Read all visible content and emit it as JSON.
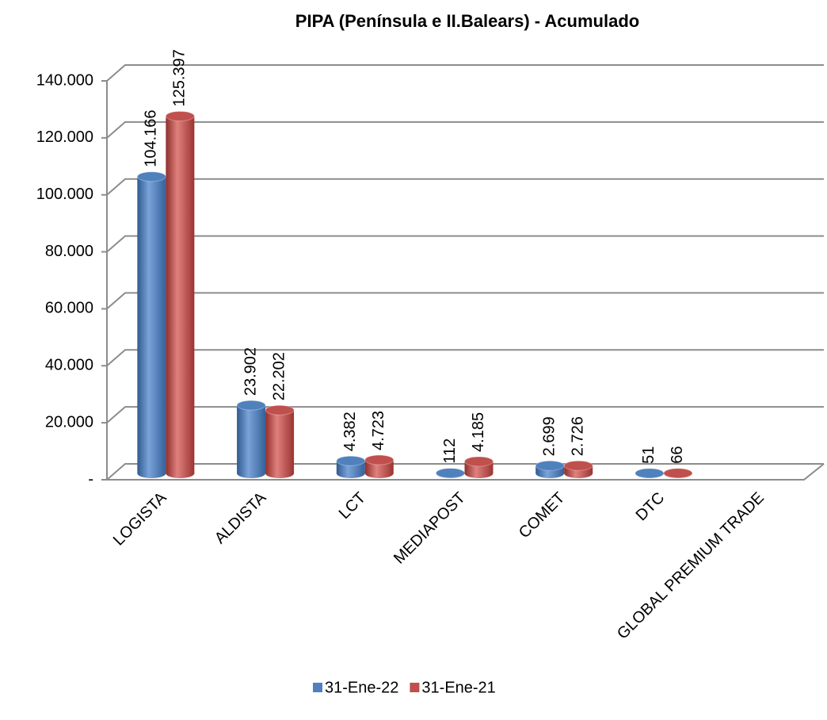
{
  "chart_data": {
    "type": "bar3d",
    "title": "PIPA  (Península e II.Balears) - Acumulado",
    "categories": [
      "LOGISTA",
      "ALDISTA",
      "LCT",
      "MEDIAPOST",
      "COMET",
      "DTC",
      "GLOBAL PREMIUM TRADE"
    ],
    "series": [
      {
        "name": "31-Ene-22",
        "color": "#4f81bd",
        "values": [
          104166,
          23902,
          4382,
          112,
          2699,
          51,
          null
        ],
        "value_labels": [
          "104.166",
          "23.902",
          "4.382",
          "112",
          "2.699",
          "51",
          null
        ]
      },
      {
        "name": "31-Ene-21",
        "color": "#c0504d",
        "values": [
          125397,
          22202,
          4723,
          4185,
          2726,
          66,
          null
        ],
        "value_labels": [
          "125.397",
          "22.202",
          "4.723",
          "4.185",
          "2.726",
          "66",
          null
        ]
      }
    ],
    "ylim": [
      0,
      140000
    ],
    "yticks": [
      {
        "value": 0,
        "label": "-"
      },
      {
        "value": 20000,
        "label": "20.000"
      },
      {
        "value": 40000,
        "label": "40.000"
      },
      {
        "value": 60000,
        "label": "60.000"
      },
      {
        "value": 80000,
        "label": "80.000"
      },
      {
        "value": 100000,
        "label": "100.000"
      },
      {
        "value": 120000,
        "label": "120.000"
      },
      {
        "value": 140000,
        "label": "140.000"
      }
    ],
    "grid": true,
    "legend": "bottom"
  }
}
